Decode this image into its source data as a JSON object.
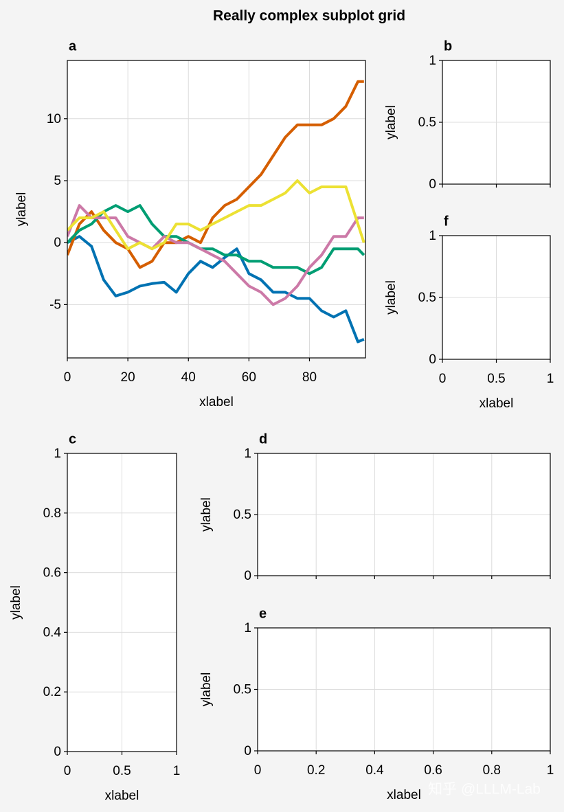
{
  "title": "Really complex subplot grid",
  "watermark": "知乎 @LLLM-Lab",
  "chart_data": [
    {
      "type": "line",
      "title": "a",
      "xlabel": "xlabel",
      "ylabel": "ylabel",
      "x": [
        0,
        4,
        8,
        12,
        16,
        20,
        24,
        28,
        32,
        36,
        40,
        44,
        48,
        52,
        56,
        60,
        64,
        68,
        72,
        76,
        80,
        84,
        88,
        92,
        96,
        98
      ],
      "xlim": [
        0,
        98.5
      ],
      "ylim": [
        -9.3,
        14.7
      ],
      "xticks": [
        0,
        20,
        40,
        60,
        80
      ],
      "yticks": [
        -5,
        0,
        5,
        10
      ],
      "grid": true,
      "series": [
        {
          "color": "#0072b2",
          "values": [
            0,
            0.5,
            -0.3,
            -3,
            -4.3,
            -4,
            -3.5,
            -3.3,
            -3.2,
            -4,
            -2.5,
            -1.5,
            -2,
            -1.2,
            -0.5,
            -2.5,
            -3,
            -4,
            -4,
            -4.5,
            -4.5,
            -5.5,
            -6,
            -5.5,
            -8,
            -7.8
          ]
        },
        {
          "color": "#d55e00",
          "values": [
            -1,
            1.5,
            2.5,
            1,
            0,
            -0.5,
            -2,
            -1.5,
            0,
            0,
            0.5,
            0,
            2,
            3,
            3.5,
            4.5,
            5.5,
            7,
            8.5,
            9.5,
            9.5,
            9.5,
            10,
            11,
            13,
            13
          ]
        },
        {
          "color": "#009e73",
          "values": [
            0,
            1,
            1.5,
            2.5,
            3,
            2.5,
            3,
            1.5,
            0.5,
            0.5,
            0,
            -0.5,
            -0.5,
            -1,
            -1,
            -1.5,
            -1.5,
            -2,
            -2,
            -2,
            -2.5,
            -2,
            -0.5,
            -0.5,
            -0.5,
            -1
          ]
        },
        {
          "color": "#cc79a7",
          "values": [
            0.5,
            3,
            2,
            2,
            2,
            0.5,
            0,
            -0.5,
            0.5,
            0,
            0,
            -0.5,
            -1,
            -1.5,
            -2.5,
            -3.5,
            -4,
            -5,
            -4.5,
            -3.5,
            -2,
            -1,
            0.5,
            0.5,
            2,
            2
          ]
        },
        {
          "color": "#ece133",
          "values": [
            1,
            2,
            2,
            2.5,
            1,
            -0.5,
            0,
            -0.5,
            0,
            1.5,
            1.5,
            1,
            1.5,
            2,
            2.5,
            3,
            3,
            3.5,
            4,
            5,
            4,
            4.5,
            4.5,
            4.5,
            1.5,
            0
          ]
        }
      ]
    },
    {
      "type": "line",
      "title": "b",
      "ylabel": "ylabel",
      "xlim": [
        0,
        1
      ],
      "ylim": [
        0,
        1
      ],
      "xticks": [
        0,
        0.5,
        1
      ],
      "yticks": [
        0,
        0.5,
        1
      ],
      "show_xticklabels": false,
      "grid": true
    },
    {
      "type": "line",
      "title": "f",
      "xlabel": "xlabel",
      "ylabel": "ylabel",
      "xlim": [
        0,
        1
      ],
      "ylim": [
        0,
        1
      ],
      "xticks": [
        0,
        0.5,
        1
      ],
      "yticks": [
        0,
        0.5,
        1
      ],
      "grid": true
    },
    {
      "type": "line",
      "title": "c",
      "xlabel": "xlabel",
      "ylabel": "ylabel",
      "xlim": [
        0,
        1
      ],
      "ylim": [
        0,
        1
      ],
      "xticks": [
        0,
        0.5,
        1
      ],
      "yticks": [
        0,
        0.2,
        0.4,
        0.6,
        0.8,
        1
      ],
      "grid": true
    },
    {
      "type": "line",
      "title": "d",
      "ylabel": "ylabel",
      "xlim": [
        0,
        1
      ],
      "ylim": [
        0,
        1
      ],
      "xticks": [
        0,
        0.2,
        0.4,
        0.6,
        0.8,
        1
      ],
      "yticks": [
        0,
        0.5,
        1
      ],
      "show_xticklabels": false,
      "grid": true
    },
    {
      "type": "line",
      "title": "e",
      "xlabel": "xlabel",
      "ylabel": "ylabel",
      "xlim": [
        0,
        1
      ],
      "ylim": [
        0,
        1
      ],
      "xticks": [
        0,
        0.2,
        0.4,
        0.6,
        0.8,
        1
      ],
      "yticks": [
        0,
        0.5,
        1
      ],
      "grid": true
    }
  ]
}
